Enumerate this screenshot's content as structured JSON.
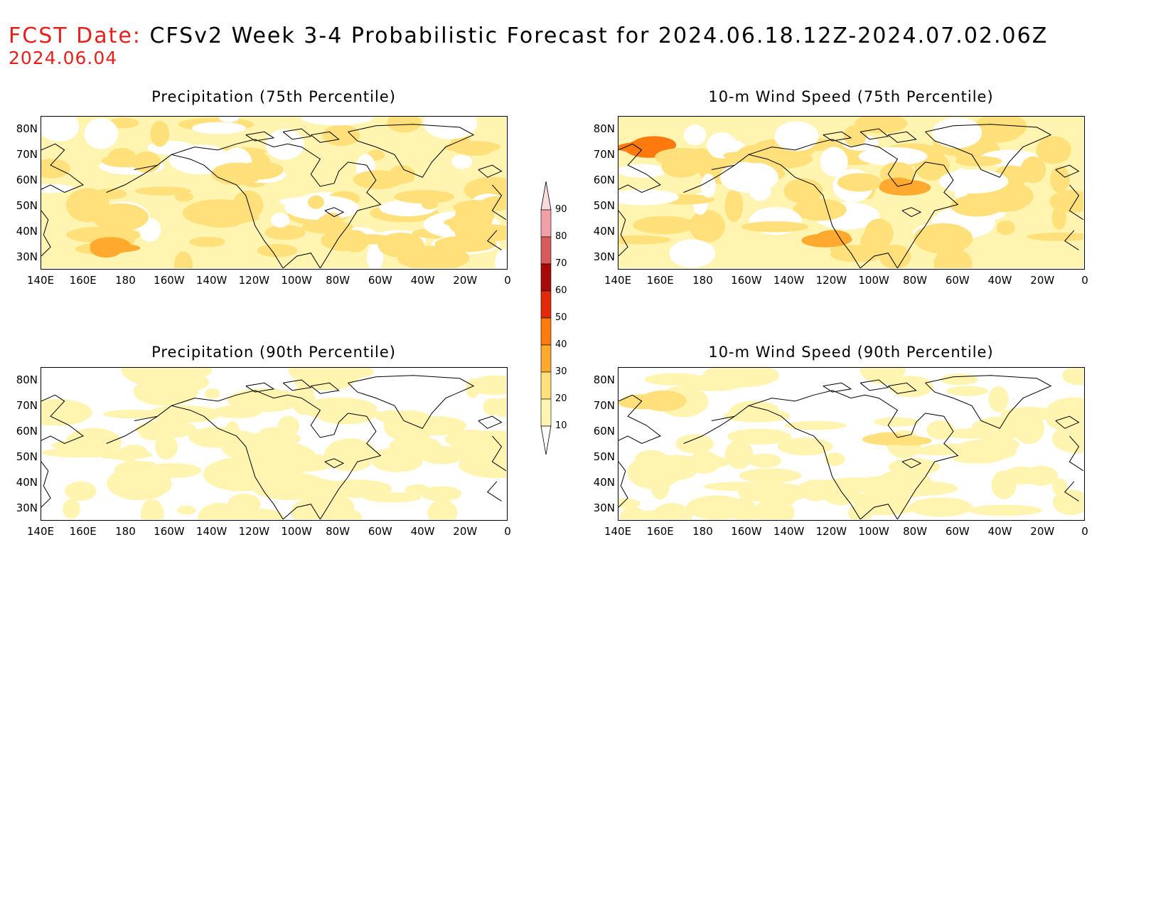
{
  "header": {
    "label": "FCST Date:",
    "title": "CFSv2 Week 3-4 Probabilistic Forecast for 2024.06.18.12Z-2024.07.02.06Z",
    "date": "2024.06.04"
  },
  "panels": [
    {
      "id": "p75",
      "title": "Precipitation (75th Percentile)",
      "base_level": 1,
      "highs": [
        [
          0.15,
          0.85,
          2
        ],
        [
          0.4,
          0.65,
          2
        ],
        [
          0.6,
          0.7,
          2
        ],
        [
          0.45,
          0.35,
          2
        ],
        [
          0.75,
          0.4,
          2
        ],
        [
          0.9,
          0.7,
          2
        ],
        [
          0.2,
          0.3,
          2
        ],
        [
          0.68,
          0.82,
          2
        ],
        [
          0.14,
          0.86,
          3
        ],
        [
          0.95,
          0.6,
          2
        ]
      ]
    },
    {
      "id": "w75",
      "title": "10-m Wind Speed (75th Percentile)",
      "base_level": 1,
      "highs": [
        [
          0.05,
          0.2,
          4
        ],
        [
          0.6,
          0.45,
          3
        ],
        [
          0.45,
          0.8,
          3
        ],
        [
          0.5,
          0.9,
          2
        ],
        [
          0.8,
          0.6,
          2
        ],
        [
          0.15,
          0.3,
          2
        ],
        [
          0.3,
          0.25,
          2
        ],
        [
          0.95,
          0.55,
          2
        ]
      ]
    },
    {
      "id": "p90",
      "title": "Precipitation (90th Percentile)",
      "base_level": 0,
      "highs": [
        [
          0.2,
          0.55,
          1
        ],
        [
          0.5,
          0.5,
          1
        ],
        [
          0.75,
          0.6,
          1
        ],
        [
          0.3,
          0.1,
          1
        ],
        [
          0.65,
          0.3,
          1
        ],
        [
          0.9,
          0.5,
          1
        ]
      ]
    },
    {
      "id": "w90",
      "title": "10-m Wind Speed (90th Percentile)",
      "base_level": 0,
      "highs": [
        [
          0.07,
          0.2,
          2
        ],
        [
          0.2,
          0.6,
          1
        ],
        [
          0.6,
          0.45,
          2
        ],
        [
          0.8,
          0.55,
          1
        ],
        [
          0.45,
          0.8,
          1
        ]
      ]
    }
  ],
  "lon_ticks": [
    "140E",
    "160E",
    "180",
    "160W",
    "140W",
    "120W",
    "100W",
    "80W",
    "60W",
    "40W",
    "20W",
    "0"
  ],
  "lat_ticks": [
    "80N",
    "70N",
    "60N",
    "50N",
    "40N",
    "30N"
  ],
  "lat_values": [
    80,
    70,
    60,
    50,
    40,
    30
  ],
  "lat_range": [
    25,
    85
  ],
  "colorbar": {
    "levels": [
      "10",
      "20",
      "30",
      "40",
      "50",
      "60",
      "70",
      "80",
      "90"
    ],
    "colors": [
      "#ffffff",
      "#fff4b0",
      "#ffe07a",
      "#ffaa2e",
      "#ff7a0e",
      "#e22a0a",
      "#a80a0a",
      "#d85a5a",
      "#f2a0a8",
      "#fadcdc"
    ]
  }
}
